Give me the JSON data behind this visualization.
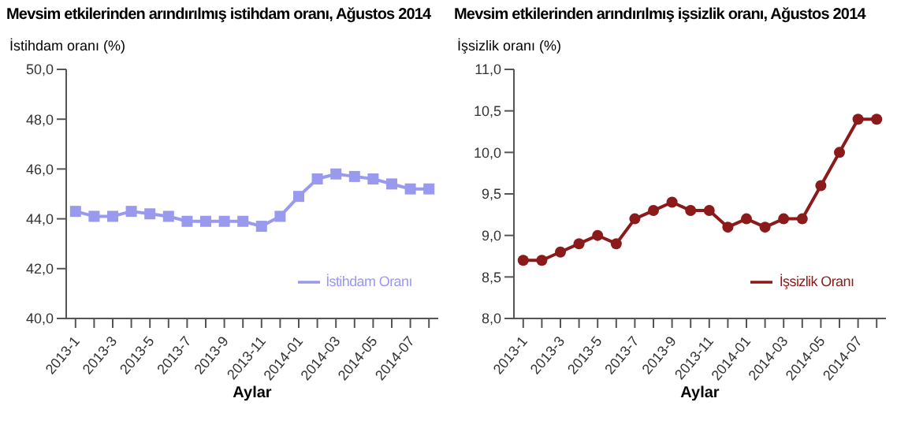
{
  "chart_data": [
    {
      "type": "line",
      "title": "Mevsim etkilerinden arındırılmış istihdam oranı, Ağustos 2014",
      "ylabel": "İstihdam oranı (%)",
      "xlabel": "Aylar",
      "categories": [
        "2013-1",
        null,
        "2013-3",
        null,
        "2013-5",
        null,
        "2013-7",
        null,
        "2013-9",
        null,
        "2013-11",
        null,
        "2014-01",
        null,
        "2014-03",
        null,
        "2014-05",
        null,
        "2014-07",
        null
      ],
      "series": [
        {
          "name": "İstihdam Oranı",
          "color": "#9999ee",
          "values": [
            44.3,
            44.1,
            44.1,
            44.3,
            44.2,
            44.1,
            43.9,
            43.9,
            43.9,
            43.9,
            43.7,
            44.1,
            44.9,
            45.6,
            45.8,
            45.7,
            45.6,
            45.4,
            45.2,
            45.2
          ]
        }
      ],
      "ylim": [
        40,
        50
      ],
      "yticks": [
        {
          "value": 40,
          "label": "40,0"
        },
        {
          "value": 42,
          "label": "42,0"
        },
        {
          "value": 44,
          "label": "44,0"
        },
        {
          "value": 46,
          "label": "46,0"
        },
        {
          "value": 48,
          "label": "48,0"
        },
        {
          "value": 50,
          "label": "50,0"
        }
      ],
      "grid": false,
      "legend": "bottom right",
      "marker": "square",
      "line_style": "solid"
    },
    {
      "type": "line",
      "title": "Mevsim etkilerinden arındırılmış işsizlik oranı, Ağustos 2014",
      "ylabel": "İşsizlik oranı (%)",
      "xlabel": "Aylar",
      "categories": [
        "2013-1",
        null,
        "2013-3",
        null,
        "2013-5",
        null,
        "2013-7",
        null,
        "2013-9",
        null,
        "2013-11",
        null,
        "2014-01",
        null,
        "2014-03",
        null,
        "2014-05",
        null,
        "2014-07",
        null
      ],
      "series": [
        {
          "name": "İşsizlik Oranı",
          "color": "#8b1a1a",
          "values": [
            8.7,
            8.7,
            8.8,
            8.9,
            9.0,
            8.9,
            9.2,
            9.3,
            9.4,
            9.3,
            9.3,
            9.1,
            9.2,
            9.1,
            9.2,
            9.2,
            9.6,
            10.0,
            10.4,
            10.4
          ]
        }
      ],
      "ylim": [
        8,
        11
      ],
      "yticks": [
        {
          "value": 8,
          "label": "8,0"
        },
        {
          "value": 8.5,
          "label": "8,5"
        },
        {
          "value": 9,
          "label": "9,0"
        },
        {
          "value": 9.5,
          "label": "9,5"
        },
        {
          "value": 10,
          "label": "10,0"
        },
        {
          "value": 10.5,
          "label": "10,5"
        },
        {
          "value": 11,
          "label": "11,0"
        }
      ],
      "grid": false,
      "legend": "bottom right",
      "marker": "circle",
      "line_style": "solid"
    }
  ]
}
